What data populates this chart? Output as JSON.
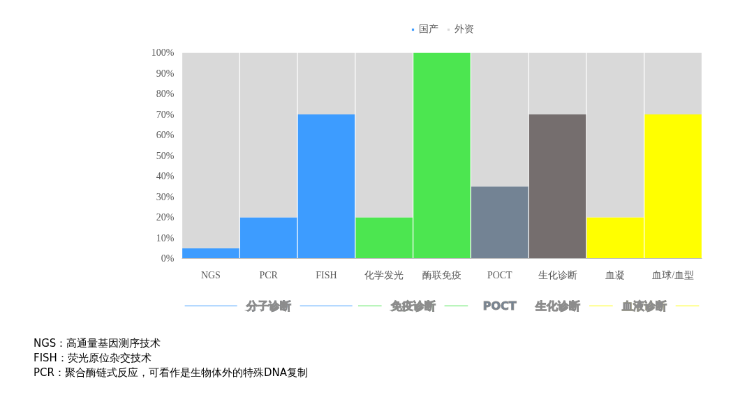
{
  "chart_data": {
    "type": "bar",
    "stacked": true,
    "categories": [
      "NGS",
      "PCR",
      "FISH",
      "化学发光",
      "酶联免疫",
      "POCT",
      "生化诊断",
      "血凝",
      "血球/血型"
    ],
    "series": [
      {
        "name": "国产",
        "color": "#3d9cff",
        "colors": [
          "#3d9cff",
          "#3d9cff",
          "#3d9cff",
          "#4ce650",
          "#4ce650",
          "#738394",
          "#756e6e",
          "#ffff00",
          "#ffff00"
        ],
        "values": [
          5,
          20,
          70,
          20,
          100,
          35,
          70,
          20,
          70
        ]
      },
      {
        "name": "外资",
        "color": "#d9d9d9",
        "values": [
          95,
          80,
          30,
          80,
          0,
          65,
          30,
          80,
          30
        ]
      }
    ],
    "ylim": [
      0,
      100
    ],
    "yticks": [
      {
        "value": 0,
        "label": "0%"
      },
      {
        "value": 10,
        "label": "10%"
      },
      {
        "value": 20,
        "label": "20%"
      },
      {
        "value": 30,
        "label": "30%"
      },
      {
        "value": 40,
        "label": "40%"
      },
      {
        "value": 50,
        "label": "50%"
      },
      {
        "value": 60,
        "label": "60%"
      },
      {
        "value": 70,
        "label": "70%"
      },
      {
        "value": 80,
        "label": "80%"
      },
      {
        "value": 90,
        "label": "90%"
      },
      {
        "value": 100,
        "label": "100%"
      }
    ],
    "legend": "top",
    "annotations": [
      "分子诊断",
      "免疫诊断",
      "POCT",
      "生化诊断",
      "血液诊断",
      "NGS：高通量基因测序技术",
      "FISH：荧光原位杂交技术",
      "PCR：聚合酶链式反应，可看作是生物体外的特殊DNA复制"
    ]
  }
}
